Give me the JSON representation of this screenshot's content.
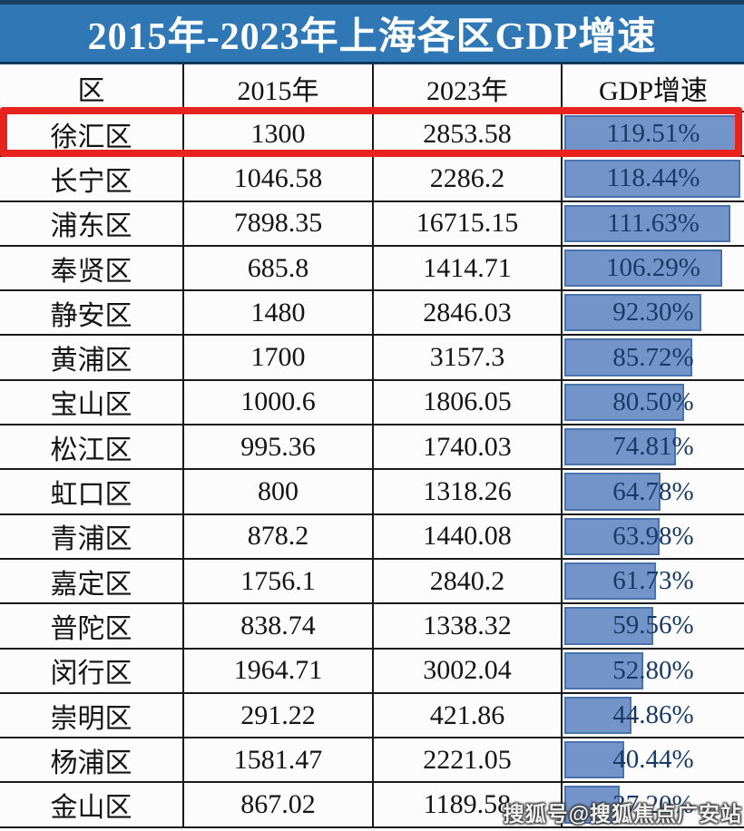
{
  "title": "2015年-2023年上海各区GDP增速",
  "table": {
    "columns": [
      "区",
      "2015年",
      "2023年",
      "GDP增速"
    ],
    "bar_scale_max": 119.51,
    "rows": [
      {
        "district": "徐汇区",
        "gdp_2015": "1300",
        "gdp_2023": "2853.58",
        "growth": "119.51%",
        "growth_value": 119.51,
        "highlighted": true
      },
      {
        "district": "长宁区",
        "gdp_2015": "1046.58",
        "gdp_2023": "2286.2",
        "growth": "118.44%",
        "growth_value": 118.44,
        "highlighted": false
      },
      {
        "district": "浦东区",
        "gdp_2015": "7898.35",
        "gdp_2023": "16715.15",
        "growth": "111.63%",
        "growth_value": 111.63,
        "highlighted": false
      },
      {
        "district": "奉贤区",
        "gdp_2015": "685.8",
        "gdp_2023": "1414.71",
        "growth": "106.29%",
        "growth_value": 106.29,
        "highlighted": false
      },
      {
        "district": "静安区",
        "gdp_2015": "1480",
        "gdp_2023": "2846.03",
        "growth": "92.30%",
        "growth_value": 92.3,
        "highlighted": false
      },
      {
        "district": "黄浦区",
        "gdp_2015": "1700",
        "gdp_2023": "3157.3",
        "growth": "85.72%",
        "growth_value": 85.72,
        "highlighted": false
      },
      {
        "district": "宝山区",
        "gdp_2015": "1000.6",
        "gdp_2023": "1806.05",
        "growth": "80.50%",
        "growth_value": 80.5,
        "highlighted": false
      },
      {
        "district": "松江区",
        "gdp_2015": "995.36",
        "gdp_2023": "1740.03",
        "growth": "74.81%",
        "growth_value": 74.81,
        "highlighted": false
      },
      {
        "district": "虹口区",
        "gdp_2015": "800",
        "gdp_2023": "1318.26",
        "growth": "64.78%",
        "growth_value": 64.78,
        "highlighted": false
      },
      {
        "district": "青浦区",
        "gdp_2015": "878.2",
        "gdp_2023": "1440.08",
        "growth": "63.98%",
        "growth_value": 63.98,
        "highlighted": false
      },
      {
        "district": "嘉定区",
        "gdp_2015": "1756.1",
        "gdp_2023": "2840.2",
        "growth": "61.73%",
        "growth_value": 61.73,
        "highlighted": false
      },
      {
        "district": "普陀区",
        "gdp_2015": "838.74",
        "gdp_2023": "1338.32",
        "growth": "59.56%",
        "growth_value": 59.56,
        "highlighted": false
      },
      {
        "district": "闵行区",
        "gdp_2015": "1964.71",
        "gdp_2023": "3002.04",
        "growth": "52.80%",
        "growth_value": 52.8,
        "highlighted": false
      },
      {
        "district": "崇明区",
        "gdp_2015": "291.22",
        "gdp_2023": "421.86",
        "growth": "44.86%",
        "growth_value": 44.86,
        "highlighted": false
      },
      {
        "district": "杨浦区",
        "gdp_2015": "1581.47",
        "gdp_2023": "2221.05",
        "growth": "40.44%",
        "growth_value": 40.44,
        "highlighted": false
      },
      {
        "district": "金山区",
        "gdp_2015": "867.02",
        "gdp_2023": "1189.58",
        "growth": "37.20%",
        "growth_value": 37.2,
        "highlighted": false
      }
    ]
  },
  "watermark": "搜狐号@搜狐焦点广安站",
  "colors": {
    "title_bg": "#2f78b5",
    "title_top_strip": "#1c3f66",
    "title_text": "#ffffff",
    "bar_fill": "#7394c9",
    "bar_border": "#4a72ad",
    "growth_text": "#173a66",
    "highlight_box": "#e8231d",
    "cell_text": "#141414",
    "grid_line": "#1a1a1a",
    "cell_bg": "#fcfcfc"
  },
  "chart_data": {
    "type": "table",
    "title": "2015年-2023年上海各区GDP增速",
    "columns": [
      "区",
      "2015年",
      "2023年",
      "GDP增速"
    ],
    "rows": [
      [
        "徐汇区",
        1300,
        2853.58,
        "119.51%"
      ],
      [
        "长宁区",
        1046.58,
        2286.2,
        "118.44%"
      ],
      [
        "浦东区",
        7898.35,
        16715.15,
        "111.63%"
      ],
      [
        "奉贤区",
        685.8,
        1414.71,
        "106.29%"
      ],
      [
        "静安区",
        1480,
        2846.03,
        "92.30%"
      ],
      [
        "黄浦区",
        1700,
        3157.3,
        "85.72%"
      ],
      [
        "宝山区",
        1000.6,
        1806.05,
        "80.50%"
      ],
      [
        "松江区",
        995.36,
        1740.03,
        "74.81%"
      ],
      [
        "虹口区",
        800,
        1318.26,
        "64.78%"
      ],
      [
        "青浦区",
        878.2,
        1440.08,
        "63.98%"
      ],
      [
        "嘉定区",
        1756.1,
        2840.2,
        "61.73%"
      ],
      [
        "普陀区",
        838.74,
        1338.32,
        "59.56%"
      ],
      [
        "闵行区",
        1964.71,
        3002.04,
        "52.80%"
      ],
      [
        "崇明区",
        291.22,
        421.86,
        "44.86%"
      ],
      [
        "杨浦区",
        1581.47,
        2221.05,
        "40.44%"
      ],
      [
        "金山区",
        867.02,
        1189.58,
        "37.20%"
      ]
    ],
    "growth_bar": {
      "style": "in-cell horizontal data bar",
      "values": [
        119.51,
        118.44,
        111.63,
        106.29,
        92.3,
        85.72,
        80.5,
        74.81,
        64.78,
        63.98,
        61.73,
        59.56,
        52.8,
        44.86,
        40.44,
        37.2
      ],
      "max": 119.51
    },
    "highlighted_row": "徐汇区"
  }
}
